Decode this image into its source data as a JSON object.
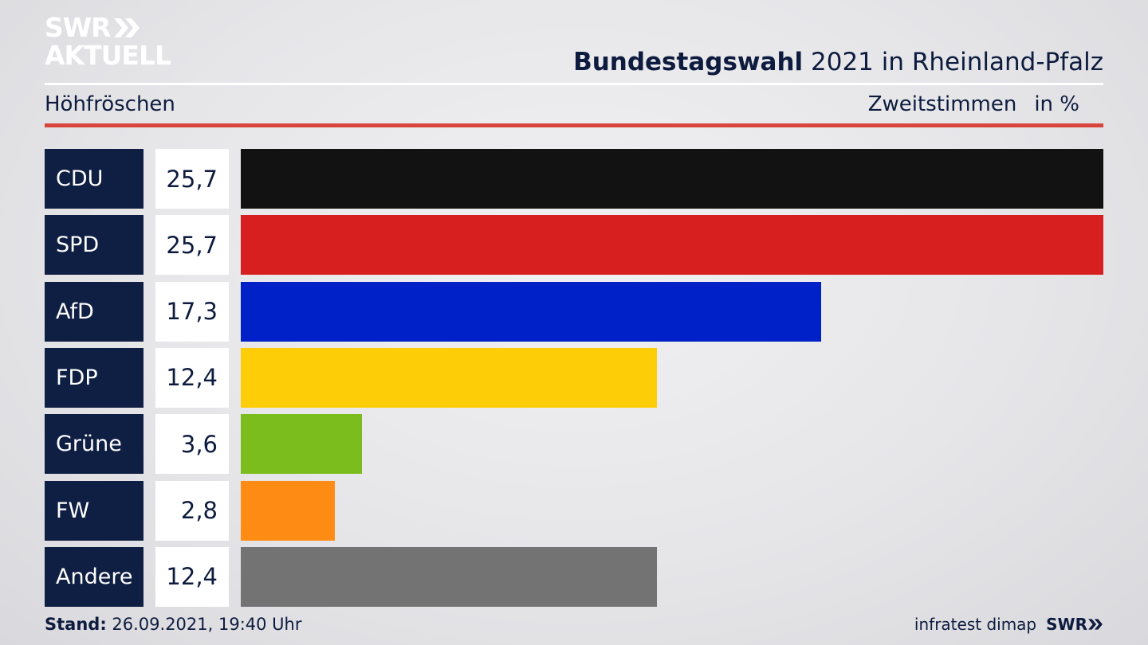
{
  "header": {
    "logo_line1": "SWR",
    "logo_line2": "AKTUELL",
    "title_bold": "Bundestagswahl",
    "title_rest": " 2021 in Rheinland-Pfalz",
    "subtitle": "Höhfröschen",
    "measure": "Zweitstimmen",
    "unit": "in %"
  },
  "footer": {
    "stand_label": "Stand:",
    "stand_value": " 26.09.2021, 19:40 Uhr",
    "source": "infratest dimap",
    "brand": "SWR"
  },
  "colors": {
    "CDU": "#121212",
    "SPD": "#d71f1f",
    "AfD": "#0020c8",
    "FDP": "#fdcd08",
    "Grüne": "#7abd1c",
    "FW": "#fe8b14",
    "Andere": "#737374"
  },
  "chart_data": {
    "type": "bar",
    "orientation": "horizontal",
    "categories": [
      "CDU",
      "SPD",
      "AfD",
      "FDP",
      "Grüne",
      "FW",
      "Andere"
    ],
    "values": [
      25.7,
      25.7,
      17.3,
      12.4,
      3.6,
      2.8,
      12.4
    ],
    "value_labels": [
      "25,7",
      "25,7",
      "17,3",
      "12,4",
      "3,6",
      "2,8",
      "12,4"
    ],
    "xlim": [
      0,
      25.7
    ]
  }
}
